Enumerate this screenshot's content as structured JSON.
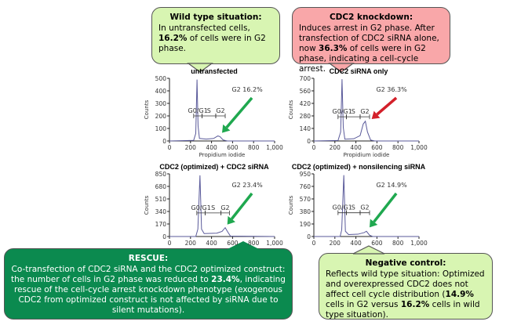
{
  "boxes": {
    "wild_type": {
      "title": "Wild type situation:",
      "l1": "In untransfected cells, ",
      "v": "16.2%",
      "l2": " of cells were in G2 phase."
    },
    "knockdown": {
      "title": "CDC2 knockdown:",
      "l1": "Induces arrest in G2 phase. After transfection of CDC2 siRNA alone, now ",
      "v": "36.3%",
      "l2": " of cells were in G2 phase, indicating a cell-cycle arrest."
    },
    "rescue": {
      "title": "RESCUE:",
      "l1": "Co-transfection of CDC2 siRNA and the CDC2 optimized construct: the number of cells in G2 phase was reduced to ",
      "v": "23.4%",
      "l2": ", indicating rescue of the cell-cycle arrest knockdown phenotype (exogenous CDC2 from optimized construct is not affected by siRNA due to silent mutations)."
    },
    "negative": {
      "title": "Negative control:",
      "l1": "Reflects wild type situation: Optimized and overexpressed CDC2 does not affect cell cycle distribution (",
      "v": "14.9%",
      "l2": " cells in G2 versus ",
      "v2": "16.2%",
      "l3": " cells in wild type situation)."
    }
  },
  "colors": {
    "green_arrow": "#1fa84f",
    "red_arrow": "#d3202a",
    "curve": "#5a5a9a"
  },
  "chart_data": [
    {
      "type": "line",
      "title": "untransfected",
      "ylabel": "Counts",
      "xlabel": "Propidium iodide",
      "xlim": [
        0,
        1000
      ],
      "ylim": [
        0,
        500
      ],
      "yticks": [
        "0",
        "100",
        "200",
        "300",
        "400",
        "500"
      ],
      "xticks": [
        "0",
        "200",
        "400",
        "600",
        "800",
        "1,000"
      ],
      "g2_label": "G2 16.2%",
      "arrow": "green",
      "gates": {
        "G0/G1": [
          230,
          310
        ],
        "S": [
          310,
          440
        ],
        "G2": [
          440,
          530
        ]
      },
      "gate_y": 200,
      "x": [
        0,
        230,
        250,
        262,
        272,
        285,
        350,
        420,
        460,
        480,
        510,
        550,
        1000
      ],
      "y": [
        0,
        5,
        60,
        490,
        120,
        20,
        15,
        20,
        40,
        35,
        8,
        0,
        0
      ],
      "peak": [
        470,
        40
      ]
    },
    {
      "type": "line",
      "title": "CDC2 siRNA only",
      "ylabel": "Counts",
      "xlabel": "Propidium iodide",
      "xlim": [
        0,
        1000
      ],
      "ylim": [
        0,
        700
      ],
      "yticks": [
        "0",
        "140",
        "280",
        "420",
        "560",
        "700"
      ],
      "xticks": [
        "0",
        "200",
        "400",
        "600",
        "800",
        "1,000"
      ],
      "g2_label": "G2 36.3%",
      "arrow": "red",
      "gates": {
        "G0/G1": [
          230,
          310
        ],
        "S": [
          310,
          440
        ],
        "G2": [
          440,
          530
        ]
      },
      "gate_y": 270,
      "x": [
        0,
        230,
        255,
        268,
        280,
        295,
        380,
        440,
        470,
        490,
        510,
        540,
        580,
        1000
      ],
      "y": [
        0,
        5,
        100,
        690,
        150,
        20,
        25,
        60,
        190,
        220,
        100,
        10,
        0,
        0
      ],
      "peak": [
        520,
        210
      ]
    },
    {
      "type": "line",
      "title": "CDC2 (optimized) + CDC2 siRNA",
      "ylabel": "Counts",
      "xlabel": "",
      "xlim": [
        0,
        1000
      ],
      "ylim": [
        0,
        850
      ],
      "yticks": [
        "0",
        "170",
        "340",
        "510",
        "680",
        "850"
      ],
      "xticks": [
        "0",
        "200",
        "400",
        "600",
        "800",
        "1,000"
      ],
      "g2_label": "G2 23.4%",
      "arrow": "green",
      "gates": {
        "G0/G1": [
          260,
          340
        ],
        "S": [
          340,
          490
        ],
        "G2": [
          490,
          570
        ]
      },
      "gate_y": 320,
      "x": [
        0,
        250,
        270,
        290,
        305,
        330,
        450,
        500,
        530,
        555,
        580,
        1000
      ],
      "y": [
        0,
        0,
        100,
        830,
        100,
        40,
        45,
        70,
        120,
        60,
        5,
        0
      ],
      "peak": [
        520,
        120
      ]
    },
    {
      "type": "line",
      "title": "CDC2 (optimized) + nonsilencing siRNA",
      "ylabel": "Counts",
      "xlabel": "",
      "xlim": [
        0,
        1000
      ],
      "ylim": [
        0,
        950
      ],
      "yticks": [
        "0",
        "190",
        "380",
        "570",
        "760",
        "950"
      ],
      "xticks": [
        "0",
        "200",
        "400",
        "600",
        "800",
        "1,000"
      ],
      "g2_label": "G2 14.9%",
      "arrow": "green",
      "gates": {
        "G0/G1": [
          230,
          310
        ],
        "S": [
          310,
          440
        ],
        "G2": [
          440,
          530
        ]
      },
      "gate_y": 360,
      "x": [
        0,
        250,
        265,
        285,
        300,
        330,
        420,
        480,
        500,
        530,
        560,
        1000
      ],
      "y": [
        0,
        0,
        100,
        930,
        80,
        30,
        35,
        60,
        80,
        20,
        0,
        0
      ],
      "peak": [
        500,
        90
      ]
    }
  ]
}
